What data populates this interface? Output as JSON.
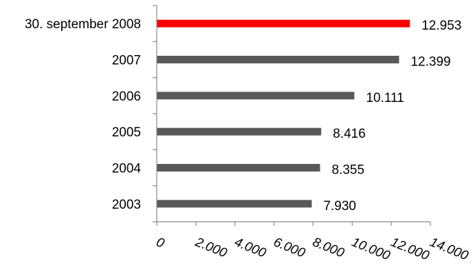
{
  "chart_data": {
    "type": "bar",
    "orientation": "horizontal",
    "categories": [
      "30. september 2008",
      "2007",
      "2006",
      "2005",
      "2004",
      "2003"
    ],
    "values": [
      12953,
      12399,
      10111,
      8416,
      8355,
      7930
    ],
    "value_labels": [
      "12.953",
      "12.399",
      "10.111",
      "8.416",
      "8.355",
      "7.930"
    ],
    "bar_colors": [
      "#ff0000",
      "#595959",
      "#595959",
      "#595959",
      "#595959",
      "#595959"
    ],
    "xlim": [
      0,
      14000
    ],
    "x_ticks": [
      0,
      2000,
      4000,
      6000,
      8000,
      10000,
      12000,
      14000
    ],
    "x_tick_labels": [
      "0",
      "2.000",
      "4.000",
      "6.000",
      "8.000",
      "10.000",
      "12.000",
      "14.000"
    ],
    "grid": false,
    "legend": "none"
  }
}
